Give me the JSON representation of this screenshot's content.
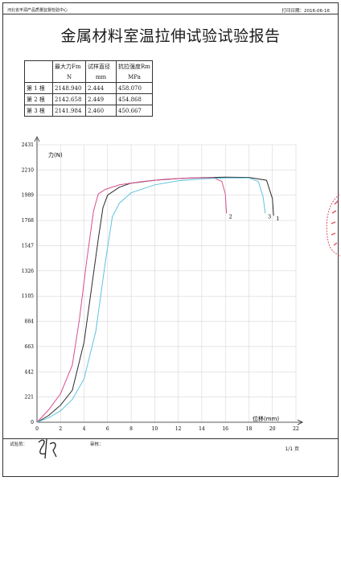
{
  "header": {
    "organization": "河北省丰润产品质量监督检验中心",
    "print_date_label": "打印日期：",
    "print_date": "2016-06-16"
  },
  "title": "金属材料室温拉伸试验试验报告",
  "results_table": {
    "headers": [
      "",
      "最大力Fm",
      "试样直径",
      "抗拉强度Rm"
    ],
    "units": [
      "",
      "N",
      "mm",
      "MPa"
    ],
    "rows": [
      [
        "第 1 根",
        "2148.940",
        "2.444",
        "458.070"
      ],
      [
        "第 2 根",
        "2142.658",
        "2.449",
        "454.868"
      ],
      [
        "第 3 根",
        "2141.984",
        "2.460",
        "450.667"
      ]
    ]
  },
  "footer": {
    "tester_label": "试验员：",
    "reviewer_label": "审核：",
    "page": "1/1 页"
  },
  "colors": {
    "specimen_1": "#2a2a2a",
    "specimen_2": "#d6508f",
    "specimen_3": "#5ec3de",
    "stamp": "#e05060"
  },
  "chart_data": {
    "type": "line",
    "title": "",
    "xlabel": "位移(mm)",
    "ylabel": "力(N)",
    "xlim": [
      0,
      22
    ],
    "ylim": [
      0,
      2431
    ],
    "xticks": [
      0,
      2,
      4,
      6,
      8,
      10,
      12,
      14,
      16,
      18,
      20,
      22
    ],
    "yticks": [
      0,
      221,
      442,
      663,
      884,
      1105,
      1326,
      1547,
      1768,
      1989,
      2210,
      2431
    ],
    "grid": true,
    "series": [
      {
        "name": "1",
        "x": [
          0,
          1,
          2,
          3,
          4,
          4.6,
          5.2,
          5.6,
          6,
          7,
          8,
          10,
          12,
          14,
          16,
          18,
          19.5,
          20,
          20.1
        ],
        "y": [
          0,
          60,
          150,
          280,
          700,
          1150,
          1600,
          1880,
          1990,
          2060,
          2095,
          2120,
          2135,
          2143,
          2148,
          2145,
          2120,
          1960,
          1810
        ]
      },
      {
        "name": "2",
        "x": [
          0,
          1,
          2,
          3,
          3.6,
          4.2,
          4.8,
          5.2,
          5.8,
          7,
          9,
          11,
          13,
          15,
          15.7,
          16,
          16.1
        ],
        "y": [
          0,
          110,
          250,
          500,
          900,
          1400,
          1850,
          2000,
          2040,
          2080,
          2110,
          2130,
          2140,
          2142,
          2110,
          2000,
          1830
        ]
      },
      {
        "name": "3",
        "x": [
          0,
          1,
          2,
          3,
          4,
          5,
          5.8,
          6.4,
          7,
          8,
          10,
          12,
          14,
          16,
          18,
          18.8,
          19.2,
          19.4
        ],
        "y": [
          0,
          40,
          100,
          200,
          380,
          800,
          1400,
          1800,
          1920,
          2010,
          2080,
          2115,
          2132,
          2140,
          2141,
          2110,
          1980,
          1830
        ]
      }
    ]
  }
}
